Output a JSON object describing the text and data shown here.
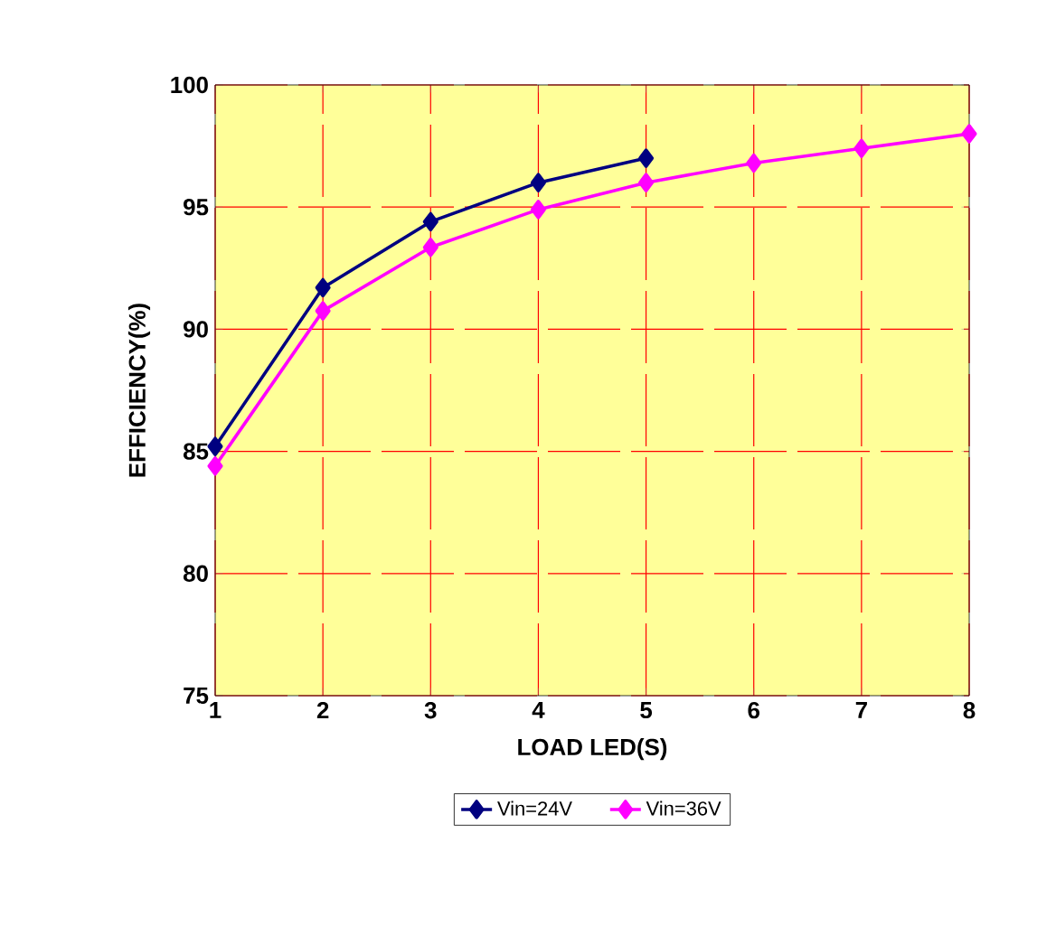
{
  "chart_data": {
    "type": "line",
    "xlabel": "LOAD LED(S)",
    "ylabel": "EFFICIENCY(%)",
    "x": [
      1,
      2,
      3,
      4,
      5,
      6,
      7,
      8
    ],
    "xlim": [
      1,
      8
    ],
    "xticks": [
      1,
      2,
      3,
      4,
      5,
      6,
      7,
      8
    ],
    "ylim": [
      75,
      100
    ],
    "yticks": [
      75,
      80,
      85,
      90,
      95,
      100
    ],
    "grid": true,
    "legend": "bottom",
    "marker": "diamond",
    "line_style": "solid",
    "series": [
      {
        "name": "Vin=24V",
        "color": "#000080",
        "values": [
          85.2,
          91.7,
          94.4,
          96.0,
          97.0,
          null,
          null,
          null
        ]
      },
      {
        "name": "Vin=36V",
        "color": "#ff00ff",
        "values": [
          84.4,
          90.75,
          93.35,
          94.9,
          96.0,
          96.8,
          97.4,
          98.0
        ]
      }
    ]
  }
}
